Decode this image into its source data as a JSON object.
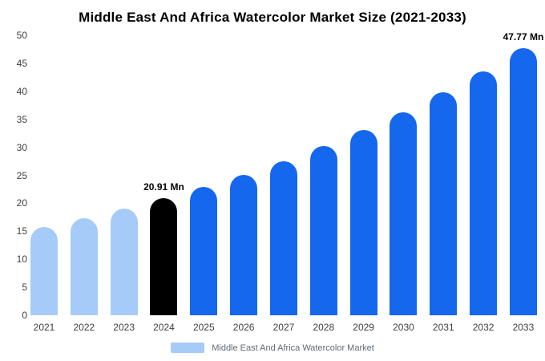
{
  "chart_data": {
    "type": "bar",
    "title": "Middle East And Africa Watercolor Market Size (2021-2033)",
    "categories": [
      "2021",
      "2022",
      "2023",
      "2024",
      "2025",
      "2026",
      "2027",
      "2028",
      "2029",
      "2030",
      "2031",
      "2032",
      "2033"
    ],
    "values": [
      15.8,
      17.3,
      19.1,
      20.91,
      22.9,
      25.1,
      27.5,
      30.2,
      33.1,
      36.3,
      39.8,
      43.6,
      47.77
    ],
    "xlabel": "",
    "ylabel": "",
    "ylim": [
      0,
      50
    ],
    "yticks": [
      0,
      5,
      10,
      15,
      20,
      25,
      30,
      35,
      40,
      45,
      50
    ],
    "grid": false,
    "annotations": [
      {
        "category": "2024",
        "text": "20.91 Mn"
      },
      {
        "category": "2033",
        "text": "47.77 Mn"
      }
    ],
    "colors": {
      "historical": "#a6cbf8",
      "highlight": "#000000",
      "forecast": "#1567ee"
    },
    "bar_color_keys": [
      "historical",
      "historical",
      "historical",
      "highlight",
      "forecast",
      "forecast",
      "forecast",
      "forecast",
      "forecast",
      "forecast",
      "forecast",
      "forecast",
      "forecast"
    ],
    "legend": {
      "label": "Middle East And Africa Watercolor Market",
      "swatch_color": "#a6cbf8",
      "position": "bottom"
    }
  }
}
